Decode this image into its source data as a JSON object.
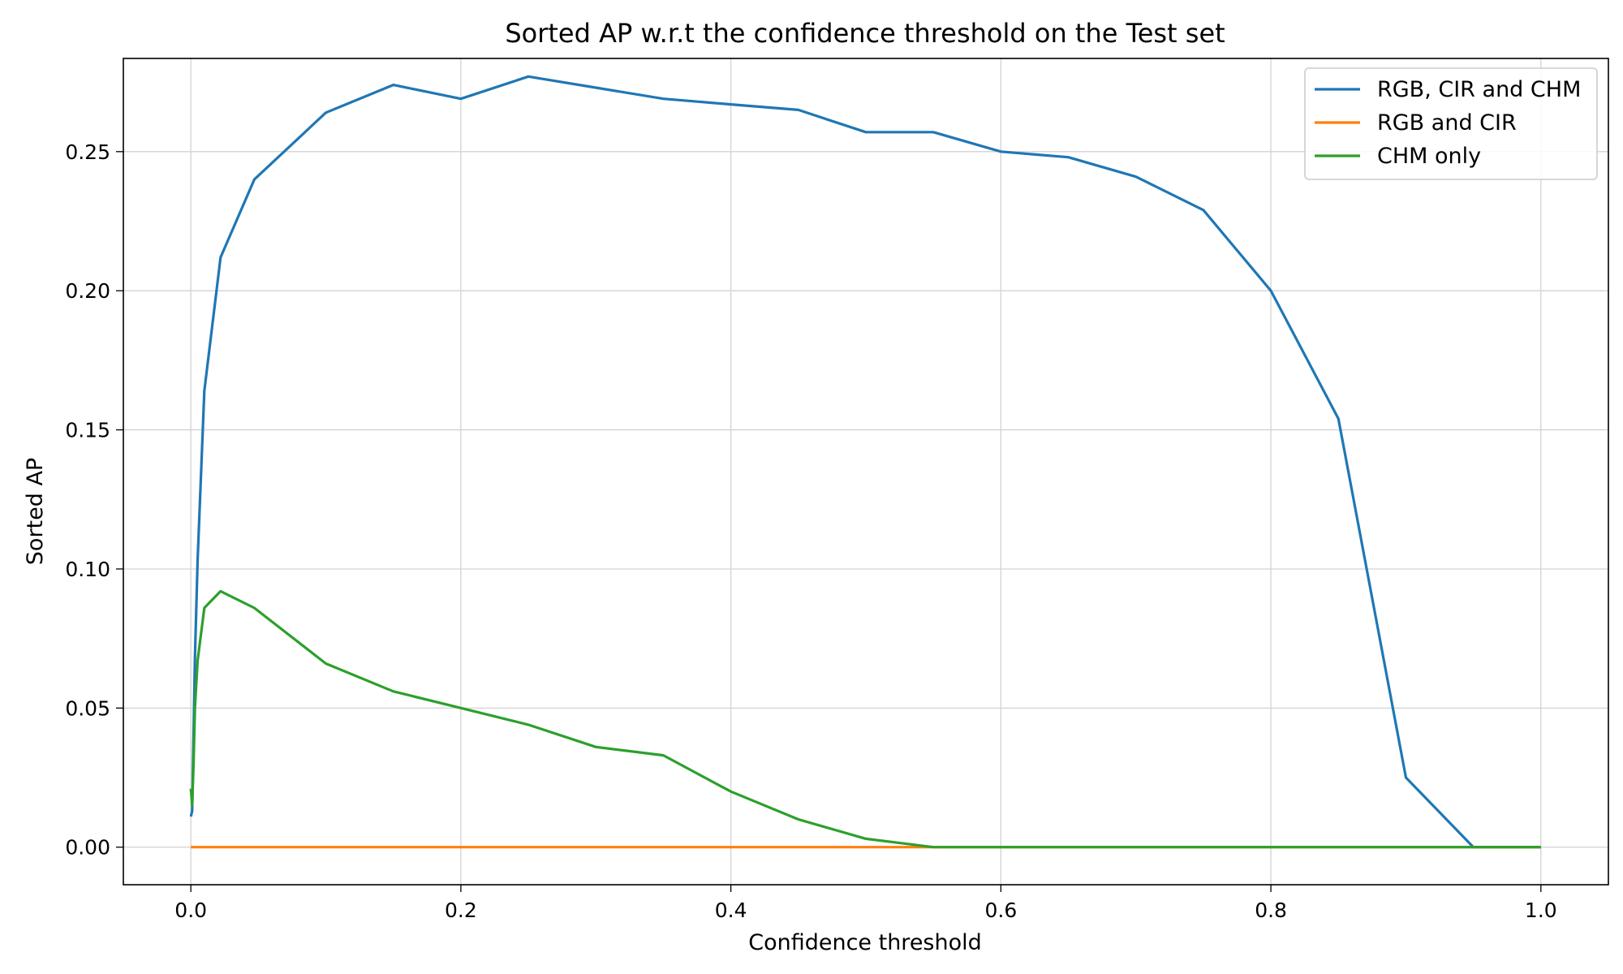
{
  "chart_data": {
    "type": "line",
    "title": "Sorted AP w.r.t the confidence threshold on the Test set",
    "xlabel": "Confidence threshold",
    "ylabel": "Sorted AP",
    "xlim": [
      -0.05,
      1.05
    ],
    "ylim": [
      -0.0135,
      0.2835
    ],
    "xticks": [
      0.0,
      0.2,
      0.4,
      0.6,
      0.8,
      1.0
    ],
    "xtick_labels": [
      "0.0",
      "0.2",
      "0.4",
      "0.6",
      "0.8",
      "1.0"
    ],
    "yticks": [
      0.0,
      0.05,
      0.1,
      0.15,
      0.2,
      0.25
    ],
    "ytick_labels": [
      "0.00",
      "0.05",
      "0.10",
      "0.15",
      "0.20",
      "0.25"
    ],
    "grid": true,
    "legend_position": "top-right",
    "series": [
      {
        "name": "RGB, CIR and CHM",
        "color": "#1f77b4",
        "x": [
          0.0,
          0.001,
          0.002,
          0.003,
          0.005,
          0.01,
          0.022,
          0.047,
          0.1,
          0.15,
          0.2,
          0.25,
          0.3,
          0.35,
          0.4,
          0.45,
          0.5,
          0.55,
          0.6,
          0.65,
          0.7,
          0.75,
          0.8,
          0.85,
          0.9,
          0.95,
          1.0
        ],
        "y": [
          0.011,
          0.013,
          0.04,
          0.068,
          0.103,
          0.164,
          0.212,
          0.24,
          0.264,
          0.274,
          0.269,
          0.277,
          0.273,
          0.269,
          0.267,
          0.265,
          0.257,
          0.257,
          0.25,
          0.248,
          0.241,
          0.229,
          0.2,
          0.154,
          0.025,
          0.0,
          0.0
        ]
      },
      {
        "name": "RGB and CIR",
        "color": "#ff7f0e",
        "x": [
          0.0,
          0.05,
          0.1,
          0.15,
          0.2,
          0.25,
          0.3,
          0.35,
          0.4,
          0.45,
          0.5,
          0.55,
          0.6,
          0.65,
          0.7,
          0.75,
          0.8,
          0.85,
          0.9,
          0.95,
          1.0
        ],
        "y": [
          0.0,
          0.0,
          0.0,
          0.0,
          0.0,
          0.0,
          0.0,
          0.0,
          0.0,
          0.0,
          0.0,
          0.0,
          0.0,
          0.0,
          0.0,
          0.0,
          0.0,
          0.0,
          0.0,
          0.0,
          0.0
        ]
      },
      {
        "name": "CHM only",
        "color": "#2ca02c",
        "x": [
          0.0,
          0.001,
          0.002,
          0.003,
          0.005,
          0.01,
          0.022,
          0.047,
          0.1,
          0.15,
          0.2,
          0.25,
          0.3,
          0.35,
          0.4,
          0.45,
          0.5,
          0.55,
          0.6,
          0.65,
          0.7,
          0.75,
          0.8,
          0.85,
          0.9,
          0.95,
          1.0
        ],
        "y": [
          0.021,
          0.015,
          0.03,
          0.05,
          0.067,
          0.086,
          0.092,
          0.086,
          0.066,
          0.056,
          0.05,
          0.044,
          0.036,
          0.033,
          0.02,
          0.01,
          0.003,
          0.0,
          0.0,
          0.0,
          0.0,
          0.0,
          0.0,
          0.0,
          0.0,
          0.0,
          0.0
        ]
      }
    ]
  }
}
